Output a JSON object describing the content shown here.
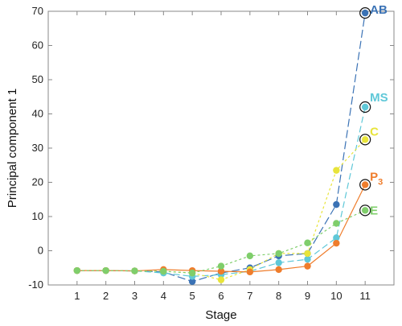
{
  "chart_data": {
    "type": "line",
    "xlabel": "Stage",
    "ylabel": "Principal component 1",
    "x": [
      1,
      2,
      3,
      4,
      5,
      6,
      7,
      8,
      9,
      10,
      11
    ],
    "xlim": [
      0,
      12
    ],
    "ylim": [
      -10,
      70
    ],
    "yticks": [
      -10,
      0,
      10,
      20,
      30,
      40,
      50,
      60,
      70
    ],
    "grid": false,
    "legend": "none",
    "series": [
      {
        "name": "AB",
        "label_main": "AB",
        "label_sub": "",
        "color": "#3a72b5",
        "dash": "10,4",
        "values": [
          -5.8,
          -5.8,
          -5.9,
          -6.2,
          -9.0,
          -6.5,
          -5.0,
          -1.5,
          -0.8,
          13.5,
          69.5
        ]
      },
      {
        "name": "MS",
        "label_main": "MS",
        "label_sub": "",
        "color": "#5fc8d8",
        "dash": "8,4",
        "values": [
          -5.8,
          -5.8,
          -5.9,
          -6.5,
          -7.5,
          -7.0,
          -6.0,
          -3.5,
          -2.5,
          3.8,
          42.0
        ]
      },
      {
        "name": "C",
        "label_main": "C",
        "label_sub": "",
        "color": "#e8e43a",
        "dash": "3,3",
        "values": [
          -5.8,
          -5.8,
          -5.9,
          -6.0,
          -6.5,
          -8.5,
          -5.5,
          -0.8,
          -0.8,
          23.5,
          32.5
        ]
      },
      {
        "name": "P3",
        "label_main": "P",
        "label_sub": "3",
        "color": "#ef7d2c",
        "dash": "",
        "values": [
          -5.8,
          -5.8,
          -5.9,
          -5.5,
          -5.8,
          -6.0,
          -6.2,
          -5.5,
          -4.5,
          2.2,
          19.3
        ]
      },
      {
        "name": "E",
        "label_main": "E",
        "label_sub": "",
        "color": "#7fce6b",
        "dash": "3,3",
        "values": [
          -5.8,
          -5.8,
          -5.9,
          -6.0,
          -6.5,
          -4.5,
          -1.5,
          -0.8,
          2.3,
          8.0,
          11.8
        ]
      }
    ]
  }
}
